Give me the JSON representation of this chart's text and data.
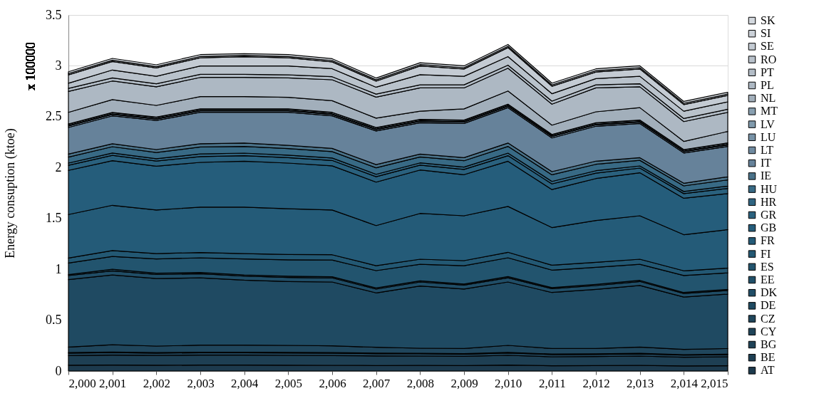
{
  "chart_data": {
    "type": "area",
    "stacked": true,
    "ylabel": "Energy consuption (ktoe)",
    "annotations": [
      "x 100000"
    ],
    "x": [
      2000,
      2001,
      2002,
      2003,
      2004,
      2005,
      2006,
      2007,
      2008,
      2009,
      2010,
      2011,
      2012,
      2013,
      2014,
      2015
    ],
    "xlim": [
      2000,
      2015
    ],
    "xticks": [
      {
        "value": 2000,
        "label": "2,000"
      },
      {
        "value": 2001,
        "label": "2,001"
      },
      {
        "value": 2002,
        "label": "2,002"
      },
      {
        "value": 2003,
        "label": "2,003"
      },
      {
        "value": 2004,
        "label": "2,004"
      },
      {
        "value": 2005,
        "label": "2,005"
      },
      {
        "value": 2006,
        "label": "2,006"
      },
      {
        "value": 2007,
        "label": "2,007"
      },
      {
        "value": 2008,
        "label": "2,008"
      },
      {
        "value": 2009,
        "label": "2,009"
      },
      {
        "value": 2010,
        "label": "2,010"
      },
      {
        "value": 2011,
        "label": "2,011"
      },
      {
        "value": 2012,
        "label": "2,012"
      },
      {
        "value": 2013,
        "label": "2,013"
      },
      {
        "value": 2014,
        "label": "2,014"
      },
      {
        "value": 2015,
        "label": "2,015"
      }
    ],
    "ylim": [
      0,
      3.5
    ],
    "yticks": [
      0,
      0.5,
      1,
      1.5,
      2,
      2.5,
      3,
      3.5
    ],
    "grid": "y",
    "legend": "right",
    "series": [
      {
        "name": "AT",
        "color": "#1d3a4d",
        "values": [
          0.057,
          0.058,
          0.057,
          0.058,
          0.058,
          0.057,
          0.056,
          0.054,
          0.055,
          0.054,
          0.058,
          0.052,
          0.054,
          0.055,
          0.05,
          0.052
        ]
      },
      {
        "name": "BE",
        "color": "#1e3f53",
        "values": [
          0.095,
          0.099,
          0.096,
          0.098,
          0.098,
          0.097,
          0.096,
          0.094,
          0.092,
          0.09,
          0.096,
          0.088,
          0.088,
          0.092,
          0.085,
          0.087
        ]
      },
      {
        "name": "BG",
        "color": "#1f4257",
        "values": [
          0.024,
          0.024,
          0.023,
          0.024,
          0.024,
          0.024,
          0.024,
          0.023,
          0.023,
          0.022,
          0.024,
          0.022,
          0.022,
          0.022,
          0.021,
          0.022
        ]
      },
      {
        "name": "CY",
        "color": "#1f4459",
        "values": [
          0.005,
          0.005,
          0.005,
          0.005,
          0.005,
          0.005,
          0.005,
          0.005,
          0.005,
          0.005,
          0.005,
          0.005,
          0.005,
          0.005,
          0.005,
          0.005
        ]
      },
      {
        "name": "CZ",
        "color": "#20465c",
        "values": [
          0.055,
          0.072,
          0.064,
          0.069,
          0.069,
          0.069,
          0.066,
          0.058,
          0.049,
          0.05,
          0.069,
          0.054,
          0.052,
          0.062,
          0.052,
          0.055
        ]
      },
      {
        "name": "DE",
        "color": "#1f4a62",
        "values": [
          0.662,
          0.686,
          0.664,
          0.662,
          0.639,
          0.628,
          0.628,
          0.534,
          0.612,
          0.585,
          0.623,
          0.551,
          0.581,
          0.605,
          0.514,
          0.535
        ]
      },
      {
        "name": "DK",
        "color": "#204d66",
        "values": [
          0.04,
          0.041,
          0.04,
          0.041,
          0.04,
          0.04,
          0.04,
          0.037,
          0.039,
          0.038,
          0.041,
          0.037,
          0.038,
          0.039,
          0.035,
          0.036
        ]
      },
      {
        "name": "EE",
        "color": "#215069",
        "values": [
          0.01,
          0.015,
          0.012,
          0.012,
          0.012,
          0.012,
          0.012,
          0.011,
          0.012,
          0.011,
          0.012,
          0.011,
          0.011,
          0.011,
          0.01,
          0.01
        ]
      },
      {
        "name": "ES",
        "color": "#22546e",
        "values": [
          0.114,
          0.126,
          0.141,
          0.143,
          0.157,
          0.161,
          0.164,
          0.171,
          0.162,
          0.18,
          0.185,
          0.172,
          0.169,
          0.158,
          0.167,
          0.163
        ]
      },
      {
        "name": "FI",
        "color": "#235873",
        "values": [
          0.048,
          0.058,
          0.052,
          0.053,
          0.052,
          0.052,
          0.052,
          0.048,
          0.05,
          0.05,
          0.054,
          0.048,
          0.049,
          0.05,
          0.046,
          0.047
        ]
      },
      {
        "name": "FR",
        "color": "#245b78",
        "values": [
          0.428,
          0.445,
          0.429,
          0.446,
          0.457,
          0.45,
          0.44,
          0.395,
          0.45,
          0.441,
          0.451,
          0.37,
          0.411,
          0.427,
          0.355,
          0.378
        ]
      },
      {
        "name": "GB",
        "color": "#255d7b",
        "values": [
          0.434,
          0.439,
          0.43,
          0.44,
          0.451,
          0.449,
          0.434,
          0.427,
          0.427,
          0.404,
          0.444,
          0.374,
          0.412,
          0.423,
          0.358,
          0.354
        ]
      },
      {
        "name": "GR",
        "color": "#2a617e",
        "values": [
          0.05,
          0.052,
          0.051,
          0.057,
          0.055,
          0.054,
          0.053,
          0.053,
          0.048,
          0.052,
          0.055,
          0.055,
          0.053,
          0.046,
          0.046,
          0.051
        ]
      },
      {
        "name": "HR",
        "color": "#2f6582",
        "values": [
          0.022,
          0.023,
          0.023,
          0.026,
          0.025,
          0.024,
          0.024,
          0.024,
          0.022,
          0.023,
          0.025,
          0.025,
          0.024,
          0.021,
          0.021,
          0.023
        ]
      },
      {
        "name": "HU",
        "color": "#386a85",
        "values": [
          0.059,
          0.062,
          0.061,
          0.068,
          0.066,
          0.064,
          0.063,
          0.064,
          0.058,
          0.062,
          0.066,
          0.065,
          0.063,
          0.055,
          0.055,
          0.061
        ]
      },
      {
        "name": "IE",
        "color": "#4a7289",
        "values": [
          0.029,
          0.029,
          0.029,
          0.032,
          0.033,
          0.032,
          0.031,
          0.031,
          0.028,
          0.03,
          0.033,
          0.031,
          0.031,
          0.026,
          0.026,
          0.03
        ]
      },
      {
        "name": "IT",
        "color": "#66829a",
        "values": [
          0.262,
          0.274,
          0.286,
          0.309,
          0.302,
          0.325,
          0.321,
          0.331,
          0.308,
          0.336,
          0.348,
          0.331,
          0.343,
          0.336,
          0.297,
          0.299
        ]
      },
      {
        "name": "LT",
        "color": "#6f8aa0",
        "values": [
          0.014,
          0.014,
          0.014,
          0.014,
          0.014,
          0.014,
          0.014,
          0.014,
          0.014,
          0.014,
          0.014,
          0.014,
          0.014,
          0.014,
          0.014,
          0.014
        ]
      },
      {
        "name": "LU",
        "color": "#7792a6",
        "values": [
          0.006,
          0.006,
          0.006,
          0.006,
          0.006,
          0.006,
          0.006,
          0.006,
          0.006,
          0.006,
          0.006,
          0.006,
          0.006,
          0.006,
          0.006,
          0.006
        ]
      },
      {
        "name": "LV",
        "color": "#809aac",
        "values": [
          0.012,
          0.012,
          0.012,
          0.012,
          0.012,
          0.012,
          0.012,
          0.012,
          0.012,
          0.012,
          0.012,
          0.012,
          0.012,
          0.012,
          0.012,
          0.012
        ]
      },
      {
        "name": "MT",
        "color": "#89a0b1",
        "values": [
          0.002,
          0.002,
          0.002,
          0.002,
          0.002,
          0.002,
          0.002,
          0.002,
          0.002,
          0.002,
          0.002,
          0.002,
          0.002,
          0.002,
          0.002,
          0.002
        ]
      },
      {
        "name": "NL",
        "color": "#a2afbb",
        "values": [
          0.115,
          0.126,
          0.114,
          0.121,
          0.121,
          0.114,
          0.114,
          0.092,
          0.08,
          0.11,
          0.13,
          0.092,
          0.108,
          0.122,
          0.08,
          0.113
        ]
      },
      {
        "name": "PL",
        "color": "#adb8c3",
        "values": [
          0.205,
          0.183,
          0.183,
          0.188,
          0.188,
          0.19,
          0.206,
          0.206,
          0.229,
          0.206,
          0.224,
          0.206,
          0.235,
          0.205,
          0.195,
          0.188
        ]
      },
      {
        "name": "PT",
        "color": "#b3bdc7",
        "values": [
          0.03,
          0.03,
          0.03,
          0.03,
          0.03,
          0.03,
          0.03,
          0.03,
          0.03,
          0.03,
          0.03,
          0.03,
          0.03,
          0.03,
          0.03,
          0.03
        ]
      },
      {
        "name": "RO",
        "color": "#b9c2cb",
        "values": [
          0.051,
          0.078,
          0.073,
          0.083,
          0.083,
          0.088,
          0.079,
          0.068,
          0.1,
          0.084,
          0.084,
          0.073,
          0.061,
          0.073,
          0.072,
          0.073
        ]
      },
      {
        "name": "SE",
        "color": "#c4cbd3",
        "values": [
          0.082,
          0.083,
          0.082,
          0.08,
          0.09,
          0.08,
          0.067,
          0.059,
          0.086,
          0.072,
          0.088,
          0.073,
          0.065,
          0.072,
          0.065,
          0.063
        ]
      },
      {
        "name": "SI",
        "color": "#cbd1d8",
        "values": [
          0.013,
          0.013,
          0.013,
          0.013,
          0.013,
          0.013,
          0.013,
          0.013,
          0.013,
          0.013,
          0.013,
          0.013,
          0.013,
          0.013,
          0.013,
          0.013
        ]
      },
      {
        "name": "SK",
        "color": "#d3d8de",
        "values": [
          0.018,
          0.018,
          0.018,
          0.018,
          0.018,
          0.018,
          0.018,
          0.018,
          0.018,
          0.018,
          0.018,
          0.018,
          0.018,
          0.018,
          0.018,
          0.018
        ]
      }
    ]
  }
}
